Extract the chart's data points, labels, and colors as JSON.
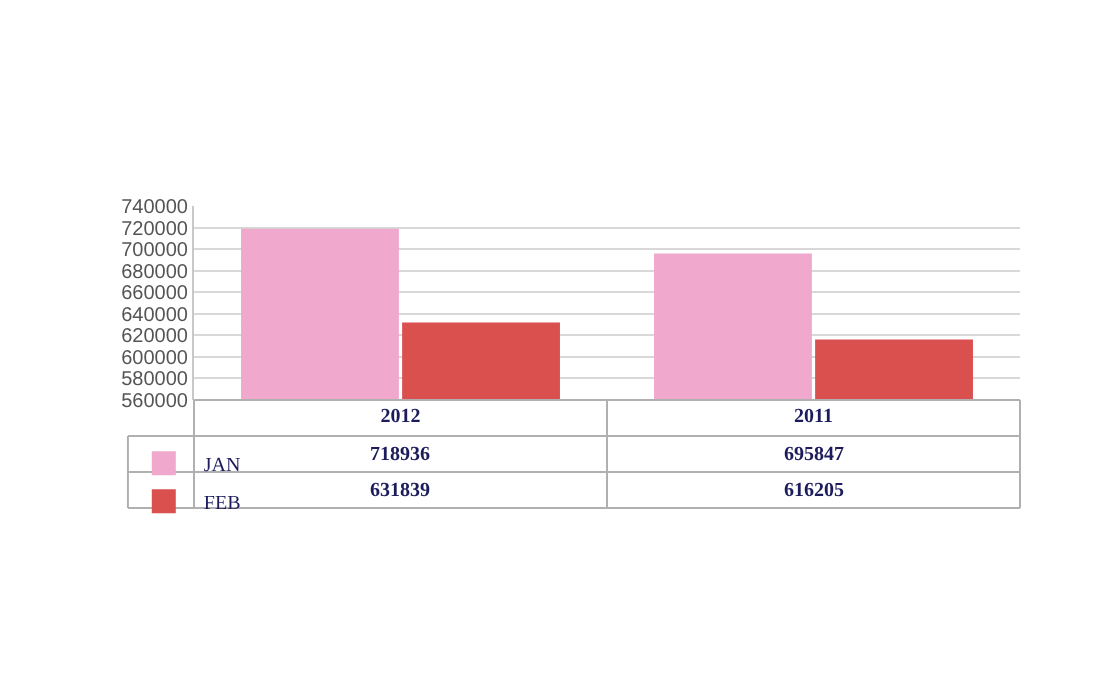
{
  "chart_data": {
    "type": "bar",
    "categories": [
      "2012",
      "2011"
    ],
    "series": [
      {
        "name": "JAN",
        "color": "#f0a8cc",
        "values": [
          718936,
          695847
        ]
      },
      {
        "name": "FEB",
        "color": "#d9504f",
        "values": [
          631839,
          616205
        ]
      }
    ],
    "ylim": [
      560000,
      740000
    ],
    "yticks": [
      560000,
      580000,
      600000,
      620000,
      640000,
      660000,
      680000,
      700000,
      720000,
      740000
    ],
    "grid": "y",
    "legend": "bottom left",
    "data_labels": true
  }
}
